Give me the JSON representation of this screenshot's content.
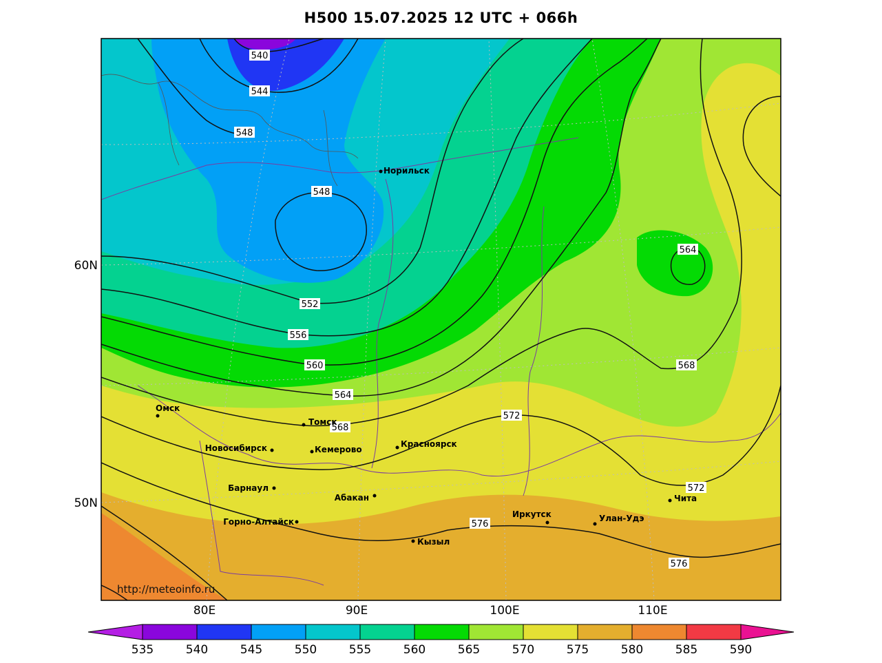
{
  "title": "H500  15.07.2025 12 UTC + 066h",
  "source_url": "http://meteoinfo.ru",
  "lat_labels": [
    "60N",
    "50N"
  ],
  "lon_labels": [
    "80E",
    "90E",
    "100E",
    "110E"
  ],
  "contour_labels": [
    "540",
    "544",
    "548",
    "548",
    "552",
    "556",
    "560",
    "564",
    "568",
    "572",
    "572",
    "576",
    "576",
    "564",
    "568"
  ],
  "cities": [
    {
      "name": "Норильск"
    },
    {
      "name": "Омск"
    },
    {
      "name": "Томск"
    },
    {
      "name": "Новосибирск"
    },
    {
      "name": "Кемерово"
    },
    {
      "name": "Красноярск"
    },
    {
      "name": "Барнаул"
    },
    {
      "name": "Абакан"
    },
    {
      "name": "Горно-Алтайск"
    },
    {
      "name": "Кызыл"
    },
    {
      "name": "Иркутск"
    },
    {
      "name": "Улан-Удэ"
    },
    {
      "name": "Чита"
    }
  ],
  "colorbar": {
    "ticks": [
      "535",
      "540",
      "545",
      "550",
      "555",
      "560",
      "565",
      "570",
      "575",
      "580",
      "585",
      "590"
    ],
    "colors": [
      "#8a06dc",
      "#2036f4",
      "#02a0f6",
      "#04c6cc",
      "#04d290",
      "#04da04",
      "#a0e634",
      "#e4e034",
      "#e4ae2e",
      "#ee8830",
      "#f23a44"
    ],
    "low_color": "#b41ee4",
    "high_color": "#ea1292"
  }
}
